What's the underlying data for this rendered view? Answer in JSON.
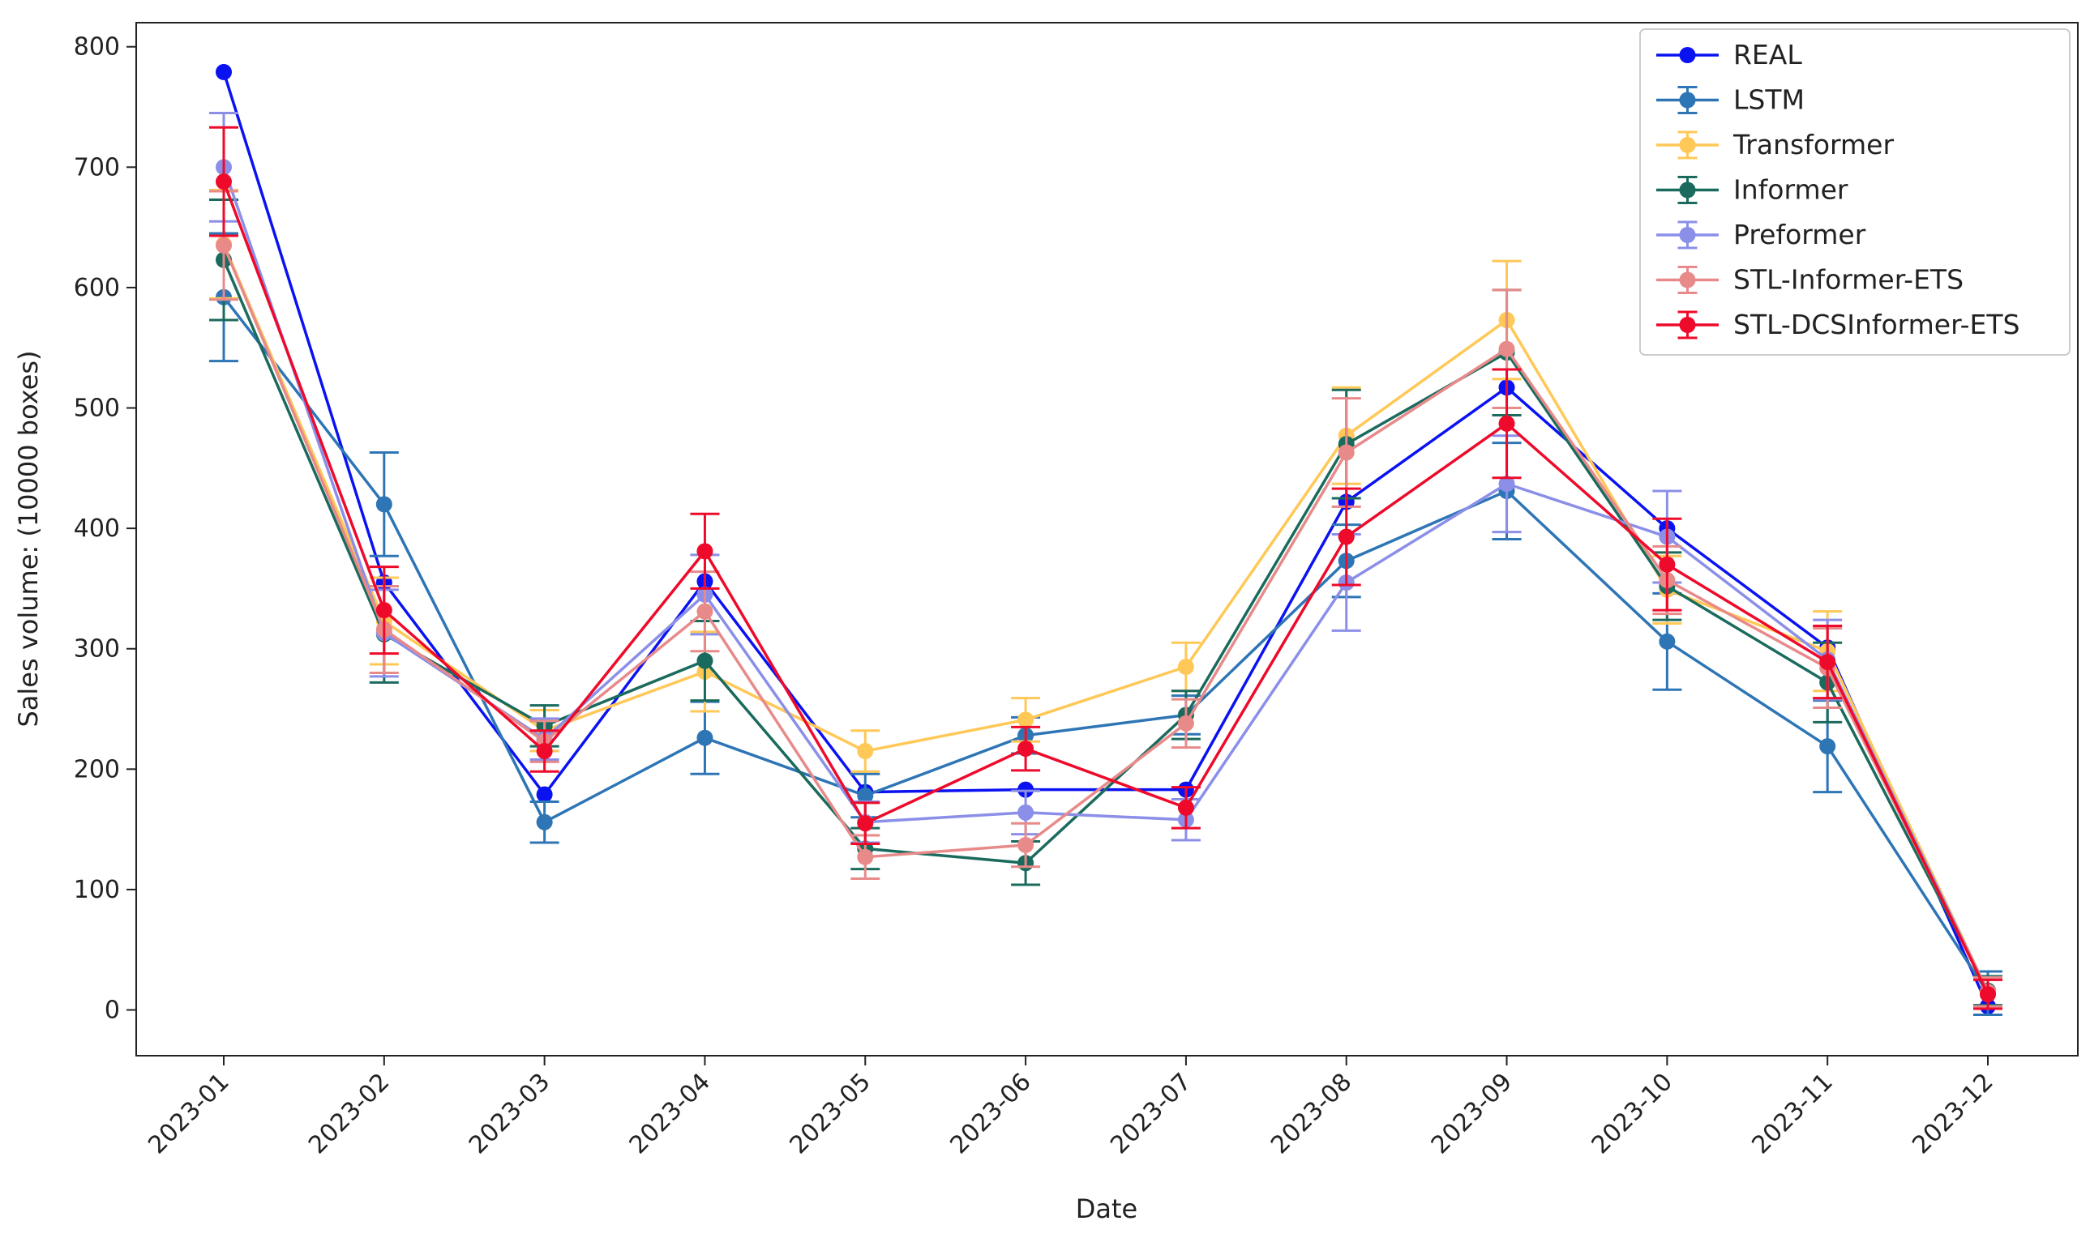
{
  "chart_data": {
    "type": "line",
    "title": "",
    "xlabel": "Date",
    "ylabel": "Sales volume: (10000 boxes)",
    "categories": [
      "2023-01",
      "2023-02",
      "2023-03",
      "2023-04",
      "2023-05",
      "2023-06",
      "2023-07",
      "2023-08",
      "2023-09",
      "2023-10",
      "2023-11",
      "2023-12"
    ],
    "yticks": [
      0,
      100,
      200,
      300,
      400,
      500,
      600,
      700,
      800
    ],
    "ylim": [
      -38,
      820
    ],
    "grid": false,
    "legend_position": "top-right",
    "series": [
      {
        "name": "REAL",
        "color": "#0a12f2",
        "values": [
          779,
          355,
          179,
          356,
          181,
          183,
          183,
          422,
          517,
          400,
          301,
          3
        ],
        "errors": null
      },
      {
        "name": "LSTM",
        "color": "#2e75b6",
        "values": [
          592,
          420,
          156,
          226,
          178,
          228,
          245,
          373,
          431,
          306,
          219,
          14
        ],
        "errors": [
          53,
          43,
          17,
          30,
          18,
          15,
          16,
          30,
          40,
          40,
          38,
          18
        ]
      },
      {
        "name": "Transformer",
        "color": "#ffc857",
        "values": [
          636,
          323,
          232,
          281,
          215,
          241,
          285,
          477,
          573,
          349,
          298,
          15
        ],
        "errors": [
          45,
          36,
          17,
          33,
          17,
          18,
          20,
          40,
          49,
          28,
          33,
          12
        ]
      },
      {
        "name": "Informer",
        "color": "#1a6b5d",
        "values": [
          623,
          312,
          236,
          290,
          134,
          122,
          245,
          470,
          546,
          352,
          272,
          16
        ],
        "errors": [
          50,
          40,
          17,
          33,
          17,
          18,
          20,
          45,
          52,
          28,
          33,
          12
        ]
      },
      {
        "name": "Preformer",
        "color": "#8b8fe8",
        "values": [
          700,
          313,
          225,
          345,
          156,
          164,
          158,
          355,
          437,
          393,
          291,
          15
        ],
        "errors": [
          45,
          36,
          17,
          33,
          17,
          18,
          17,
          40,
          40,
          38,
          33,
          12
        ]
      },
      {
        "name": "STL-Informer-ETS",
        "color": "#e88a8a",
        "values": [
          635,
          316,
          223,
          331,
          127,
          137,
          238,
          463,
          549,
          357,
          284,
          15
        ],
        "errors": [
          45,
          36,
          17,
          33,
          18,
          18,
          20,
          45,
          49,
          28,
          33,
          12
        ]
      },
      {
        "name": "STL-DCSInformer-ETS",
        "color": "#ee0a2a",
        "values": [
          688,
          332,
          215,
          381,
          155,
          217,
          168,
          393,
          487,
          370,
          289,
          13
        ],
        "errors": [
          45,
          36,
          17,
          31,
          17,
          18,
          17,
          40,
          45,
          38,
          30,
          12
        ]
      }
    ]
  }
}
